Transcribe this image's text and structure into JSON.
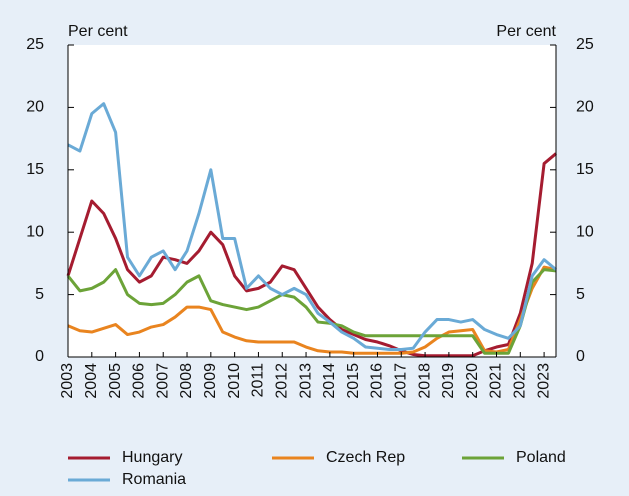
{
  "chart_data": {
    "type": "line",
    "y_label": "Per cent",
    "y2_label": "Per cent",
    "x": [
      2003.0,
      2003.5,
      2004.0,
      2004.5,
      2005.0,
      2005.5,
      2006.0,
      2006.5,
      2007.0,
      2007.5,
      2008.0,
      2008.5,
      2009.0,
      2009.5,
      2010.0,
      2010.5,
      2011.0,
      2011.5,
      2012.0,
      2012.5,
      2013.0,
      2013.5,
      2014.0,
      2014.5,
      2015.0,
      2015.5,
      2016.0,
      2016.5,
      2017.0,
      2017.5,
      2018.0,
      2018.5,
      2019.0,
      2019.5,
      2020.0,
      2020.5,
      2021.0,
      2021.5,
      2022.0,
      2022.5,
      2023.0,
      2023.5
    ],
    "xlim": [
      2003,
      2023.5
    ],
    "xticks": [
      2003,
      2004,
      2005,
      2006,
      2007,
      2008,
      2009,
      2010,
      2011,
      2012,
      2013,
      2014,
      2015,
      2016,
      2017,
      2018,
      2019,
      2020,
      2021,
      2022,
      2023
    ],
    "ylim": [
      0,
      25
    ],
    "yticks": [
      0,
      5,
      10,
      15,
      20,
      25
    ],
    "y2lim": [
      0,
      25
    ],
    "y2ticks": [
      0,
      5,
      10,
      15,
      20,
      25
    ],
    "series": [
      {
        "name": "Hungary",
        "color": "#a51c30",
        "values": [
          6.5,
          9.5,
          12.5,
          11.5,
          9.5,
          7.0,
          6.0,
          6.5,
          8.0,
          7.8,
          7.5,
          8.5,
          10.0,
          9.0,
          6.5,
          5.3,
          5.5,
          6.0,
          7.3,
          7.0,
          5.5,
          4.0,
          3.0,
          2.2,
          1.8,
          1.4,
          1.2,
          0.9,
          0.5,
          0.2,
          0.1,
          0.1,
          0.1,
          0.1,
          0.1,
          0.5,
          0.8,
          1.0,
          3.5,
          7.5,
          15.5,
          16.3
        ]
      },
      {
        "name": "Czech Rep",
        "color": "#e9841f",
        "values": [
          2.5,
          2.1,
          2.0,
          2.3,
          2.6,
          1.8,
          2.0,
          2.4,
          2.6,
          3.2,
          4.0,
          4.0,
          3.8,
          2.0,
          1.6,
          1.3,
          1.2,
          1.2,
          1.2,
          1.2,
          0.8,
          0.5,
          0.4,
          0.4,
          0.3,
          0.3,
          0.3,
          0.3,
          0.3,
          0.4,
          0.8,
          1.5,
          2.0,
          2.1,
          2.2,
          0.5,
          0.4,
          0.6,
          3.0,
          5.5,
          7.2,
          7.0
        ]
      },
      {
        "name": "Poland",
        "color": "#6ca338",
        "values": [
          6.5,
          5.3,
          5.5,
          6.0,
          7.0,
          5.0,
          4.3,
          4.2,
          4.3,
          5.0,
          6.0,
          6.5,
          4.5,
          4.2,
          4.0,
          3.8,
          4.0,
          4.5,
          5.0,
          4.8,
          4.0,
          2.8,
          2.7,
          2.5,
          2.0,
          1.7,
          1.7,
          1.7,
          1.7,
          1.7,
          1.7,
          1.7,
          1.7,
          1.7,
          1.7,
          0.3,
          0.3,
          0.3,
          2.5,
          6.0,
          7.0,
          6.9
        ]
      },
      {
        "name": "Romania",
        "color": "#6aaad6",
        "values": [
          17.0,
          16.5,
          19.5,
          20.3,
          18.0,
          8.0,
          6.5,
          8.0,
          8.5,
          7.0,
          8.5,
          11.5,
          15.0,
          9.5,
          9.5,
          5.5,
          6.5,
          5.5,
          5.0,
          5.5,
          5.0,
          3.5,
          2.8,
          2.0,
          1.5,
          0.8,
          0.7,
          0.6,
          0.6,
          0.7,
          2.0,
          3.0,
          3.0,
          2.8,
          3.0,
          2.2,
          1.8,
          1.5,
          2.5,
          6.5,
          7.8,
          7.0
        ]
      }
    ]
  }
}
